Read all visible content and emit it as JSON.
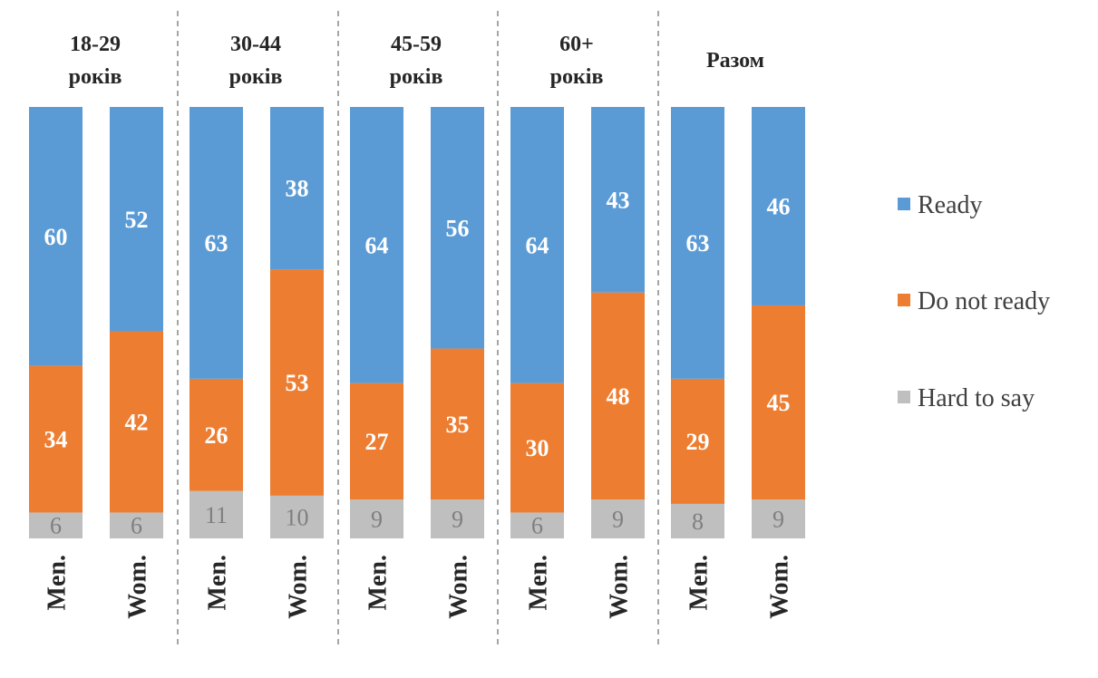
{
  "chart_data": {
    "type": "bar",
    "stacked": true,
    "percent_stacked": true,
    "groups": [
      {
        "label_lines": [
          "18-29",
          "років"
        ],
        "bars": [
          {
            "category": "Men.",
            "values": {
              "Ready": 60,
              "Do not ready": 34,
              "Hard to say": 6
            }
          },
          {
            "category": "Wom.",
            "values": {
              "Ready": 52,
              "Do not ready": 42,
              "Hard to say": 6
            }
          }
        ]
      },
      {
        "label_lines": [
          "30-44",
          "років"
        ],
        "bars": [
          {
            "category": "Men.",
            "values": {
              "Ready": 63,
              "Do not ready": 26,
              "Hard to say": 11
            }
          },
          {
            "category": "Wom.",
            "values": {
              "Ready": 38,
              "Do not ready": 53,
              "Hard to say": 10
            }
          }
        ]
      },
      {
        "label_lines": [
          "45-59",
          "років"
        ],
        "bars": [
          {
            "category": "Men.",
            "values": {
              "Ready": 64,
              "Do not ready": 27,
              "Hard to say": 9
            }
          },
          {
            "category": "Wom.",
            "values": {
              "Ready": 56,
              "Do not ready": 35,
              "Hard to say": 9
            }
          }
        ]
      },
      {
        "label_lines": [
          "60+",
          "років"
        ],
        "bars": [
          {
            "category": "Men.",
            "values": {
              "Ready": 64,
              "Do not ready": 30,
              "Hard to say": 6
            }
          },
          {
            "category": "Wom.",
            "values": {
              "Ready": 43,
              "Do not ready": 48,
              "Hard to say": 9
            }
          }
        ]
      },
      {
        "label_lines": [
          "Разом"
        ],
        "bars": [
          {
            "category": "Men.",
            "values": {
              "Ready": 63,
              "Do not ready": 29,
              "Hard to say": 8
            }
          },
          {
            "category": "Wom.",
            "values": {
              "Ready": 46,
              "Do not ready": 45,
              "Hard to say": 9
            }
          }
        ]
      }
    ],
    "series": [
      {
        "name": "Ready",
        "color": "#5b9bd5"
      },
      {
        "name": "Do not ready",
        "color": "#ed7d31"
      },
      {
        "name": "Hard to say",
        "color": "#bfbfbf"
      }
    ],
    "legend_position": "right",
    "grid": false
  }
}
